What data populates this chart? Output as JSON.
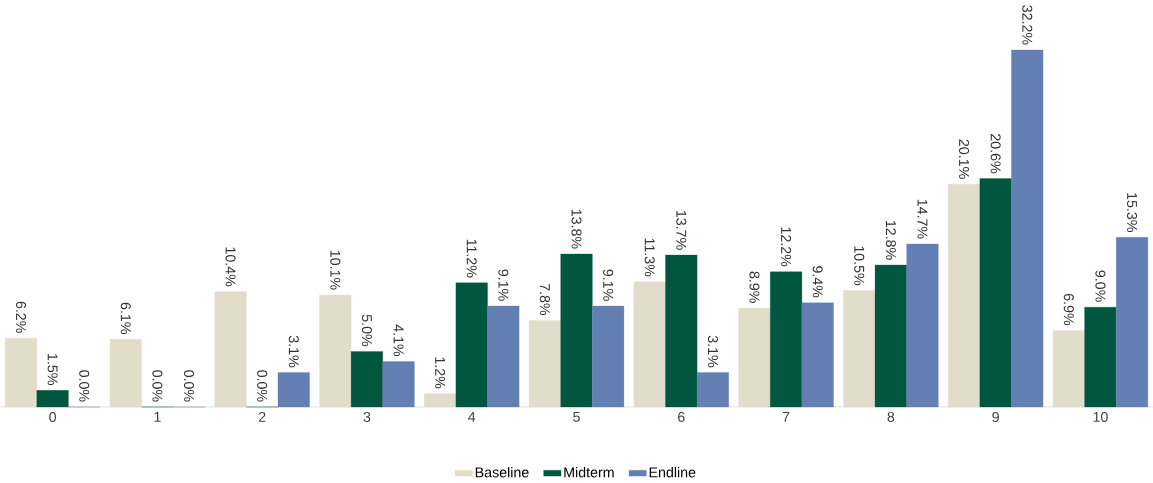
{
  "chart_data": {
    "type": "bar",
    "legend": "bottom",
    "categories": [
      "0",
      "1",
      "2",
      "3",
      "4",
      "5",
      "6",
      "7",
      "8",
      "9",
      "10"
    ],
    "series": [
      {
        "name": "Baseline",
        "color": "#e2dccb",
        "values": [
          6.2,
          6.1,
          10.4,
          10.1,
          1.2,
          7.8,
          11.3,
          8.9,
          10.5,
          20.1,
          6.9
        ],
        "value_labels": [
          "6.2%",
          "6.1%",
          "10.4%",
          "10.1%",
          "1.2%",
          "7.8%",
          "11.3%",
          "8.9%",
          "10.5%",
          "20.1%",
          "6.9%"
        ]
      },
      {
        "name": "Midterm",
        "color": "#00563f",
        "values": [
          1.5,
          0.0,
          0.0,
          5.0,
          11.2,
          13.8,
          13.7,
          12.2,
          12.8,
          20.6,
          9.0
        ],
        "value_labels": [
          "1.5%",
          "0.0%",
          "0.0%",
          "5.0%",
          "11.2%",
          "13.8%",
          "13.7%",
          "12.2%",
          "12.8%",
          "20.6%",
          "9.0%"
        ]
      },
      {
        "name": "Endline",
        "color": "#647fb4",
        "values": [
          0.0,
          0.0,
          3.1,
          4.1,
          9.1,
          9.1,
          3.1,
          9.4,
          14.7,
          32.2,
          15.3
        ],
        "value_labels": [
          "0.0%",
          "0.0%",
          "3.1%",
          "4.1%",
          "9.1%",
          "9.1%",
          "3.1%",
          "9.4%",
          "14.7%",
          "32.2%",
          "15.3%"
        ]
      }
    ]
  }
}
